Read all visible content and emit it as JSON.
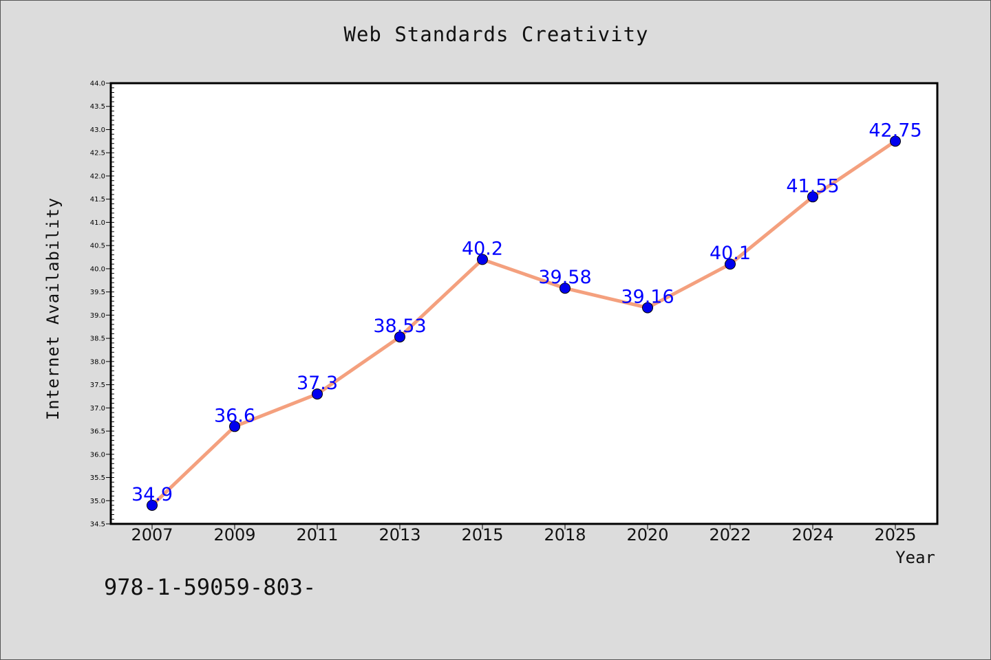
{
  "chart_data": {
    "type": "line",
    "title": "Web Standards Creativity",
    "xlabel": "Year",
    "ylabel": "Internet Availability",
    "categories": [
      "2007",
      "2009",
      "2011",
      "2013",
      "2015",
      "2018",
      "2020",
      "2022",
      "2024",
      "2025"
    ],
    "series": [
      {
        "values": [
          34.9,
          36.6,
          37.3,
          38.53,
          40.2,
          39.58,
          39.16,
          40.1,
          41.55,
          42.75
        ]
      }
    ],
    "data_labels": [
      "34.9",
      "36.6",
      "37.3",
      "38.53",
      "40.2",
      "39.58",
      "39.16",
      "40.1",
      "41.55",
      "42.75"
    ],
    "ylim": [
      34.5,
      44.0
    ],
    "y_ticks": [
      "34.5",
      "35.0",
      "35.5",
      "36.0",
      "36.5",
      "37.0",
      "37.5",
      "38.0",
      "38.5",
      "39.0",
      "39.5",
      "40.0",
      "40.5",
      "41.0",
      "41.5",
      "42.0",
      "42.5",
      "43.0",
      "43.5",
      "44.0"
    ],
    "grid": false,
    "colors": {
      "line": "#f4a07e",
      "marker": "#0000ee",
      "data_label": "#0000ff",
      "plot_background": "#ffffff",
      "page_background": "#dcdcdc"
    }
  },
  "footnote": "978-1-59059-803-"
}
